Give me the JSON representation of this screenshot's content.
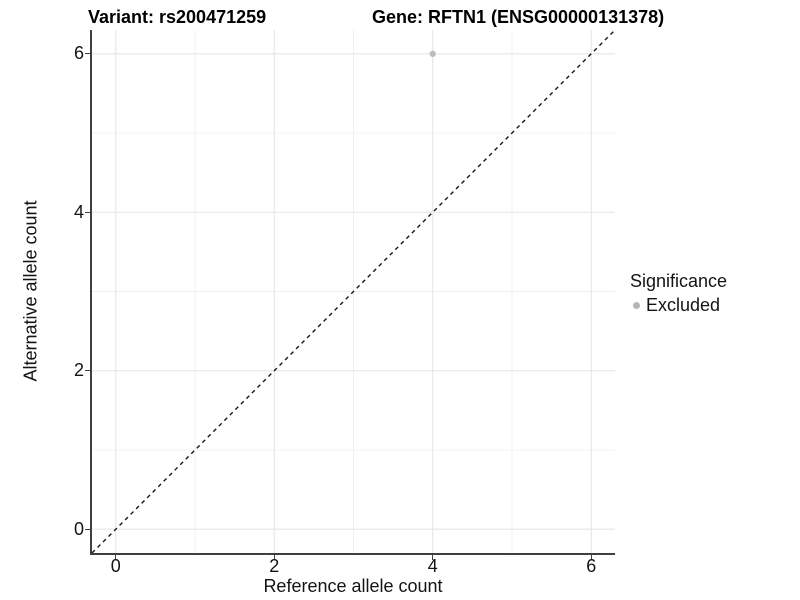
{
  "chart_data": {
    "type": "scatter",
    "titles": [
      "Variant: rs200471259",
      "Gene: RFTN1 (ENSG00000131378)"
    ],
    "xlabel": "Reference allele count",
    "ylabel": "Alternative allele count",
    "xlim": [
      -0.3,
      6.3
    ],
    "ylim": [
      -0.3,
      6.3
    ],
    "x_ticks": [
      0,
      2,
      4,
      6
    ],
    "y_ticks": [
      0,
      2,
      4,
      6
    ],
    "x_minor_gridlines": [
      1,
      3,
      5
    ],
    "y_minor_gridlines": [
      1,
      3,
      5
    ],
    "grid": "major and minor, light gray on white panel",
    "reference_line": {
      "kind": "identity y=x",
      "style": "dashed",
      "color": "#161616"
    },
    "legend": {
      "title": "Significance",
      "position": "right",
      "entries": [
        {
          "label": "Excluded",
          "color": "#b5b5b5"
        }
      ]
    },
    "series": [
      {
        "name": "Excluded",
        "marker": "circle",
        "color": "#bdbdbd",
        "points": [
          {
            "x": 4,
            "y": 6
          }
        ]
      }
    ],
    "colors": {
      "axis_line": "#3f3f3f",
      "major_grid": "#e5e5e5",
      "minor_grid": "#f0f0f0",
      "text": "#141414",
      "title_text": "#000000"
    }
  }
}
